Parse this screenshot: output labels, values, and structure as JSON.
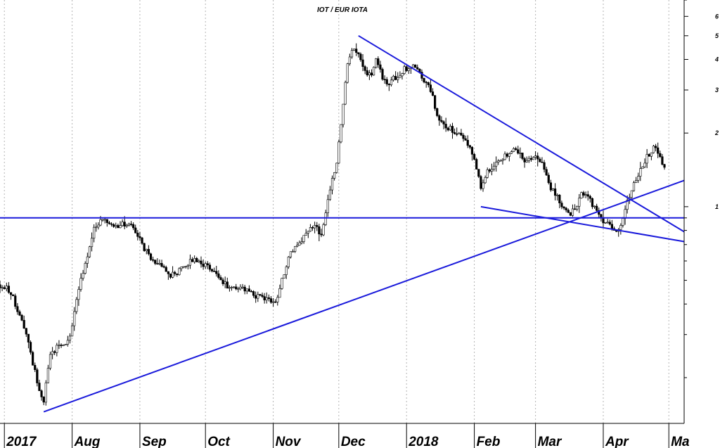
{
  "chart_data": {
    "type": "candlestick",
    "title": "IOT / EUR IOTA",
    "xlabel": "",
    "ylabel": "",
    "y_scale": "log",
    "ylim": [
      0.13,
      7.0
    ],
    "x_range": [
      "2017-06-29",
      "2018-05-08"
    ],
    "x_ticks": [
      {
        "label": "2017",
        "date": "2017-07-01"
      },
      {
        "label": "Aug",
        "date": "2017-08-01"
      },
      {
        "label": "Sep",
        "date": "2017-09-01"
      },
      {
        "label": "Oct",
        "date": "2017-10-01"
      },
      {
        "label": "Nov",
        "date": "2017-11-01"
      },
      {
        "label": "Dec",
        "date": "2017-12-01"
      },
      {
        "label": "2018",
        "date": "2018-01-01"
      },
      {
        "label": "Feb",
        "date": "2018-02-01"
      },
      {
        "label": "Mar",
        "date": "2018-03-01"
      },
      {
        "label": "Apr",
        "date": "2018-04-01"
      },
      {
        "label": "Ma",
        "date": "2018-05-01"
      }
    ],
    "y_ticks": [
      {
        "label": "6",
        "value": 6
      },
      {
        "label": "5",
        "value": 5
      },
      {
        "label": "4",
        "value": 4
      },
      {
        "label": "3",
        "value": 3
      },
      {
        "label": "2",
        "value": 2
      },
      {
        "label": "1",
        "value": 1
      }
    ],
    "grid": {
      "vertical": true,
      "horizontal": false,
      "style": "dotted"
    },
    "colors": {
      "candles": "#000000",
      "trendlines": "#1a1adb",
      "grid": "#b4b4b4"
    },
    "price_path": [
      [
        "2017-06-29",
        0.48
      ],
      [
        "2017-07-04",
        0.45
      ],
      [
        "2017-07-08",
        0.36
      ],
      [
        "2017-07-12",
        0.28
      ],
      [
        "2017-07-16",
        0.19
      ],
      [
        "2017-07-19",
        0.16
      ],
      [
        "2017-07-22",
        0.25
      ],
      [
        "2017-07-26",
        0.27
      ],
      [
        "2017-07-31",
        0.29
      ],
      [
        "2017-08-04",
        0.46
      ],
      [
        "2017-08-08",
        0.63
      ],
      [
        "2017-08-11",
        0.82
      ],
      [
        "2017-08-14",
        0.88
      ],
      [
        "2017-08-18",
        0.85
      ],
      [
        "2017-08-22",
        0.83
      ],
      [
        "2017-08-26",
        0.86
      ],
      [
        "2017-08-30",
        0.79
      ],
      [
        "2017-09-03",
        0.67
      ],
      [
        "2017-09-07",
        0.6
      ],
      [
        "2017-09-11",
        0.56
      ],
      [
        "2017-09-15",
        0.52
      ],
      [
        "2017-09-19",
        0.55
      ],
      [
        "2017-09-23",
        0.59
      ],
      [
        "2017-09-27",
        0.6
      ],
      [
        "2017-10-01",
        0.58
      ],
      [
        "2017-10-05",
        0.53
      ],
      [
        "2017-10-09",
        0.49
      ],
      [
        "2017-10-13",
        0.46
      ],
      [
        "2017-10-17",
        0.47
      ],
      [
        "2017-10-21",
        0.45
      ],
      [
        "2017-10-25",
        0.43
      ],
      [
        "2017-10-29",
        0.42
      ],
      [
        "2017-11-02",
        0.41
      ],
      [
        "2017-11-04",
        0.46
      ],
      [
        "2017-11-08",
        0.62
      ],
      [
        "2017-11-12",
        0.7
      ],
      [
        "2017-11-16",
        0.78
      ],
      [
        "2017-11-20",
        0.86
      ],
      [
        "2017-11-23",
        0.75
      ],
      [
        "2017-11-25",
        0.95
      ],
      [
        "2017-11-27",
        1.2
      ],
      [
        "2017-11-30",
        1.5
      ],
      [
        "2017-12-03",
        2.6
      ],
      [
        "2017-12-05",
        3.8
      ],
      [
        "2017-12-07",
        4.4
      ],
      [
        "2017-12-10",
        4.2
      ],
      [
        "2017-12-13",
        3.5
      ],
      [
        "2017-12-16",
        3.4
      ],
      [
        "2017-12-18",
        4.1
      ],
      [
        "2017-12-21",
        3.4
      ],
      [
        "2017-12-24",
        3.2
      ],
      [
        "2017-12-27",
        3.4
      ],
      [
        "2017-12-30",
        3.6
      ],
      [
        "2018-01-03",
        3.8
      ],
      [
        "2018-01-07",
        3.5
      ],
      [
        "2018-01-10",
        3.2
      ],
      [
        "2018-01-13",
        2.8
      ],
      [
        "2018-01-16",
        2.2
      ],
      [
        "2018-01-20",
        2.1
      ],
      [
        "2018-01-24",
        2.0
      ],
      [
        "2018-01-28",
        1.9
      ],
      [
        "2018-02-01",
        1.6
      ],
      [
        "2018-02-04",
        1.2
      ],
      [
        "2018-02-07",
        1.4
      ],
      [
        "2018-02-11",
        1.5
      ],
      [
        "2018-02-15",
        1.6
      ],
      [
        "2018-02-20",
        1.7
      ],
      [
        "2018-02-24",
        1.55
      ],
      [
        "2018-02-28",
        1.6
      ],
      [
        "2018-03-04",
        1.5
      ],
      [
        "2018-03-08",
        1.2
      ],
      [
        "2018-03-12",
        1.05
      ],
      [
        "2018-03-16",
        0.93
      ],
      [
        "2018-03-19",
        0.97
      ],
      [
        "2018-03-22",
        1.15
      ],
      [
        "2018-03-25",
        1.1
      ],
      [
        "2018-03-28",
        0.98
      ],
      [
        "2018-03-31",
        0.9
      ],
      [
        "2018-04-03",
        0.84
      ],
      [
        "2018-04-07",
        0.81
      ],
      [
        "2018-04-10",
        0.87
      ],
      [
        "2018-04-12",
        1.05
      ],
      [
        "2018-04-15",
        1.25
      ],
      [
        "2018-04-18",
        1.4
      ],
      [
        "2018-04-21",
        1.6
      ],
      [
        "2018-04-24",
        1.75
      ],
      [
        "2018-04-27",
        1.6
      ],
      [
        "2018-04-29",
        1.45
      ]
    ],
    "trendlines": [
      {
        "name": "support-rising",
        "points": [
          [
            "2017-07-19",
            0.145
          ],
          [
            "2018-05-08",
            1.28
          ]
        ]
      },
      {
        "name": "resistance-falling",
        "points": [
          [
            "2017-12-10",
            5.0
          ],
          [
            "2018-05-08",
            0.79
          ]
        ]
      },
      {
        "name": "horizontal-level",
        "points": [
          [
            "2017-06-29",
            0.9
          ],
          [
            "2018-05-08",
            0.9
          ]
        ]
      },
      {
        "name": "lower-channel",
        "points": [
          [
            "2018-02-04",
            1.0
          ],
          [
            "2018-05-08",
            0.72
          ]
        ]
      }
    ]
  }
}
